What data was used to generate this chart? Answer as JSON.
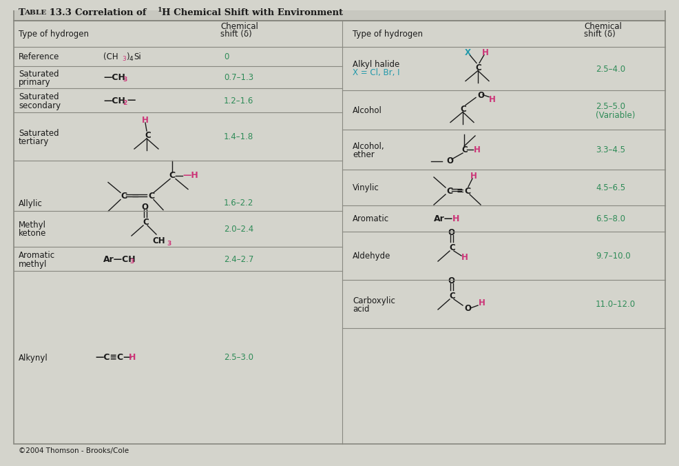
{
  "bg_color": "#d4d4cc",
  "title_bg_color": "#c8c8c0",
  "border_color": "#888880",
  "text_color": "#1a1a1a",
  "green_color": "#2e8b57",
  "pink_color": "#cc3377",
  "teal_color": "#2299aa",
  "fig_width": 9.66,
  "fig_height": 6.51,
  "copyright": "©2004 Thomson - Brooks/Cole",
  "title_text": "Correlation of ¹H Chemical Shift with Environment"
}
